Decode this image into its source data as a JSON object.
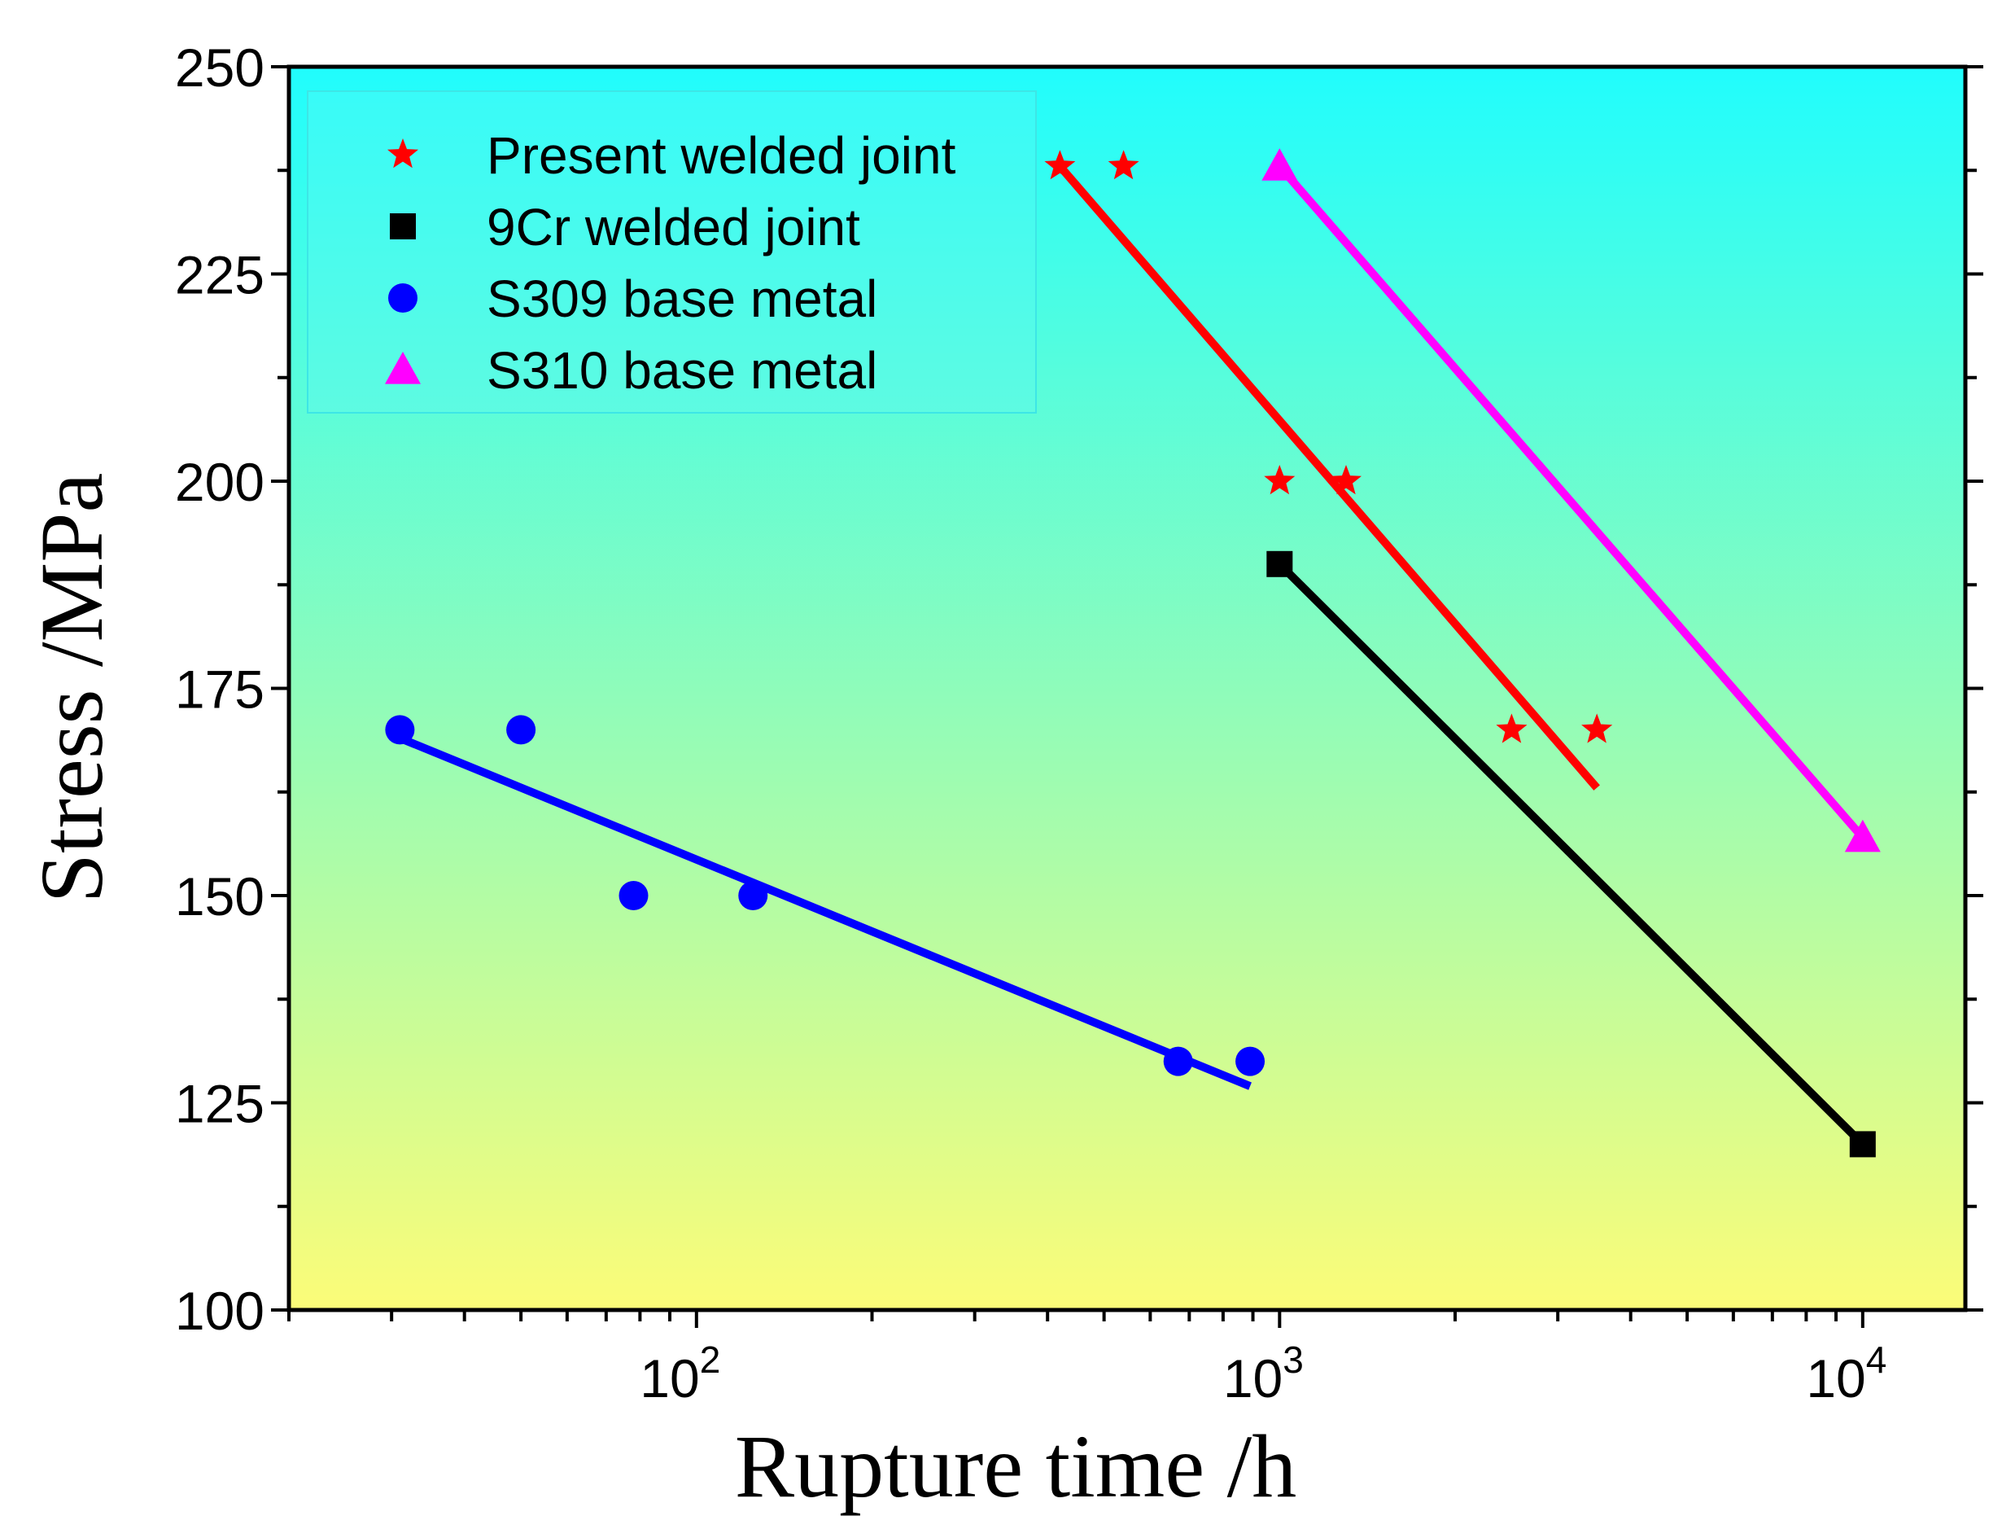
{
  "chart_data": {
    "type": "scatter",
    "xscale": "log",
    "xlim": [
      20,
      15000
    ],
    "ylim": [
      100,
      250
    ],
    "xlabel": "Rupture time /h",
    "ylabel": "Stress /MPa",
    "yticks": [
      "100",
      "125",
      "150",
      "175",
      "200",
      "225",
      "250"
    ],
    "xticks": [
      {
        "base": "10",
        "exp": "2"
      },
      {
        "base": "10",
        "exp": "3"
      },
      {
        "base": "10",
        "exp": "4"
      }
    ],
    "legend_position": "top-left",
    "background_gradient": [
      "#20fdfd",
      "#fcfc78"
    ],
    "series": [
      {
        "name": "Present welded joint",
        "marker": "star",
        "color": "#ff0000",
        "points": [
          [
            420,
            238
          ],
          [
            540,
            238
          ],
          [
            1000,
            200
          ],
          [
            1300,
            200
          ],
          [
            2500,
            170
          ],
          [
            3500,
            170
          ]
        ],
        "fit": [
          [
            420,
            238
          ],
          [
            3500,
            163
          ]
        ]
      },
      {
        "name": "9Cr welded joint",
        "marker": "square",
        "color": "#000000",
        "points": [
          [
            1000,
            190
          ],
          [
            10000,
            120
          ]
        ],
        "fit": [
          [
            1000,
            190
          ],
          [
            10000,
            120
          ]
        ]
      },
      {
        "name": "S309 base metal",
        "marker": "circle",
        "color": "#0000ff",
        "points": [
          [
            31,
            170
          ],
          [
            50,
            170
          ],
          [
            78,
            150
          ],
          [
            125,
            150
          ],
          [
            670,
            130
          ],
          [
            890,
            130
          ]
        ],
        "fit": [
          [
            31,
            169
          ],
          [
            890,
            127
          ]
        ]
      },
      {
        "name": "S310 base metal",
        "marker": "triangle",
        "color": "#ff00ff",
        "points": [
          [
            1000,
            238
          ],
          [
            10000,
            157
          ]
        ],
        "fit": [
          [
            1000,
            238
          ],
          [
            10000,
            157
          ]
        ]
      }
    ]
  }
}
